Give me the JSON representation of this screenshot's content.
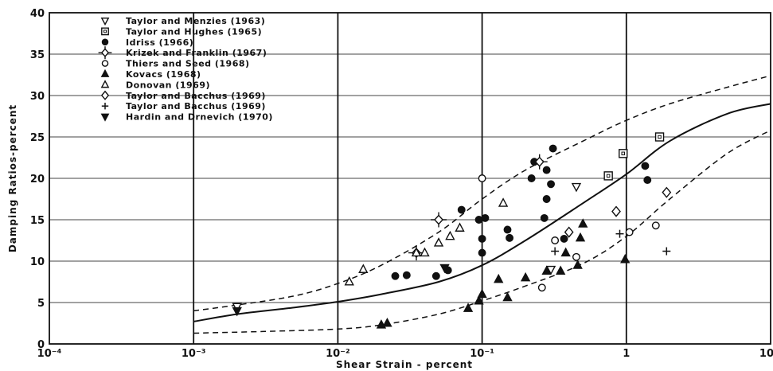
{
  "chart_data": {
    "type": "scatter",
    "xlabel": "Shear  Strain  -  percent",
    "ylabel": "Damping Ratios-percent",
    "xscale": "log",
    "xlim": [
      0.0001,
      10
    ],
    "ylim": [
      0,
      40
    ],
    "x_tick_labels": [
      "10⁻⁴",
      "10⁻³",
      "10⁻²",
      "10⁻¹",
      "1",
      "10"
    ],
    "x_tick_values": [
      0.0001,
      0.001,
      0.01,
      0.1,
      1,
      10
    ],
    "y_tick_labels": [
      "0",
      "5",
      "10",
      "15",
      "20",
      "25",
      "30",
      "35",
      "40"
    ],
    "y_tick_values": [
      0,
      5,
      10,
      15,
      20,
      25,
      30,
      35,
      40
    ],
    "grid": true,
    "legend_position": "top-left",
    "series": [
      {
        "name": "Taylor and Menzies (1963)",
        "marker": "triangle-down-open",
        "points": [
          [
            0.002,
            4.5
          ],
          [
            0.3,
            9.0
          ],
          [
            0.45,
            19.0
          ]
        ]
      },
      {
        "name": "Taylor and Hughes (1965)",
        "marker": "square-open",
        "points": [
          [
            0.75,
            20.3
          ],
          [
            0.95,
            23.0
          ],
          [
            1.7,
            25.0
          ]
        ]
      },
      {
        "name": "Idriss (1966)",
        "marker": "circle-filled",
        "points": [
          [
            0.025,
            8.2
          ],
          [
            0.03,
            8.3
          ],
          [
            0.048,
            8.2
          ],
          [
            0.058,
            8.9
          ],
          [
            0.072,
            16.2
          ],
          [
            0.095,
            15.0
          ],
          [
            0.1,
            11.0
          ],
          [
            0.1,
            12.7
          ],
          [
            0.105,
            15.2
          ],
          [
            0.15,
            13.8
          ],
          [
            0.155,
            12.8
          ],
          [
            0.22,
            20.0
          ],
          [
            0.23,
            22.0
          ],
          [
            0.27,
            15.2
          ],
          [
            0.28,
            17.5
          ],
          [
            0.28,
            21.0
          ],
          [
            0.3,
            19.3
          ],
          [
            0.31,
            23.6
          ],
          [
            0.37,
            12.7
          ],
          [
            1.35,
            21.5
          ],
          [
            1.4,
            19.8
          ]
        ]
      },
      {
        "name": "Krizek and Franklin (1967)",
        "marker": "diamond-cross",
        "points": [
          [
            0.035,
            11.0
          ],
          [
            0.05,
            15.0
          ],
          [
            0.25,
            22.0
          ]
        ]
      },
      {
        "name": "Thiers and Seed (1968)",
        "marker": "circle-open",
        "points": [
          [
            0.1,
            20.0
          ],
          [
            0.26,
            6.8
          ],
          [
            0.32,
            12.5
          ],
          [
            0.45,
            10.5
          ],
          [
            1.05,
            13.5
          ],
          [
            1.6,
            14.3
          ]
        ]
      },
      {
        "name": "Kovacs (1968)",
        "marker": "triangle-up-filled",
        "points": [
          [
            0.02,
            2.3
          ],
          [
            0.022,
            2.5
          ],
          [
            0.08,
            4.3
          ],
          [
            0.095,
            5.2
          ],
          [
            0.1,
            6.0
          ],
          [
            0.13,
            7.8
          ],
          [
            0.15,
            5.6
          ],
          [
            0.2,
            8.0
          ],
          [
            0.28,
            8.8
          ],
          [
            0.35,
            8.8
          ],
          [
            0.38,
            11.0
          ],
          [
            0.46,
            9.5
          ],
          [
            0.48,
            12.8
          ],
          [
            0.5,
            14.5
          ],
          [
            0.98,
            10.2
          ]
        ]
      },
      {
        "name": "Donovan (1969)",
        "marker": "triangle-up-open",
        "points": [
          [
            0.012,
            7.5
          ],
          [
            0.015,
            9.0
          ],
          [
            0.035,
            11.0
          ],
          [
            0.04,
            11.0
          ],
          [
            0.05,
            12.2
          ],
          [
            0.06,
            13.0
          ],
          [
            0.07,
            14.0
          ],
          [
            0.14,
            17.0
          ]
        ]
      },
      {
        "name": "Taylor and Bacchus (1969)",
        "marker": "diamond-open",
        "points": [
          [
            0.4,
            13.5
          ],
          [
            0.85,
            16.0
          ],
          [
            1.9,
            18.3
          ]
        ]
      },
      {
        "name": "Taylor and Bacchus (1969)",
        "marker": "plus",
        "points": [
          [
            0.32,
            11.2
          ],
          [
            0.9,
            13.3
          ],
          [
            1.9,
            11.2
          ]
        ]
      },
      {
        "name": "Hardin and Drnevich (1970)",
        "marker": "triangle-down-filled",
        "points": [
          [
            0.002,
            4.0
          ],
          [
            0.055,
            9.2
          ]
        ]
      }
    ],
    "curves": [
      {
        "style": "solid",
        "points": [
          [
            0.001,
            2.7
          ],
          [
            0.002,
            3.6
          ],
          [
            0.005,
            4.4
          ],
          [
            0.01,
            5.1
          ],
          [
            0.02,
            6.0
          ],
          [
            0.05,
            7.5
          ],
          [
            0.1,
            9.5
          ],
          [
            0.2,
            12.5
          ],
          [
            0.5,
            17.0
          ],
          [
            1,
            20.5
          ],
          [
            2,
            24.5
          ],
          [
            5,
            27.8
          ],
          [
            10,
            29.0
          ]
        ]
      },
      {
        "style": "dashed",
        "points": [
          [
            0.001,
            4.0
          ],
          [
            0.002,
            4.7
          ],
          [
            0.005,
            5.8
          ],
          [
            0.01,
            7.3
          ],
          [
            0.02,
            9.5
          ],
          [
            0.05,
            13.5
          ],
          [
            0.1,
            17.5
          ],
          [
            0.2,
            21.0
          ],
          [
            0.5,
            24.5
          ],
          [
            1,
            27.0
          ],
          [
            2,
            29.0
          ],
          [
            5,
            31.0
          ],
          [
            10,
            32.4
          ]
        ]
      },
      {
        "style": "dashed",
        "points": [
          [
            0.001,
            1.3
          ],
          [
            0.003,
            1.5
          ],
          [
            0.01,
            1.8
          ],
          [
            0.02,
            2.3
          ],
          [
            0.05,
            3.6
          ],
          [
            0.1,
            5.2
          ],
          [
            0.2,
            7.0
          ],
          [
            0.5,
            9.7
          ],
          [
            1,
            13.0
          ],
          [
            2,
            17.5
          ],
          [
            5,
            23.0
          ],
          [
            10,
            25.8
          ]
        ]
      }
    ]
  }
}
